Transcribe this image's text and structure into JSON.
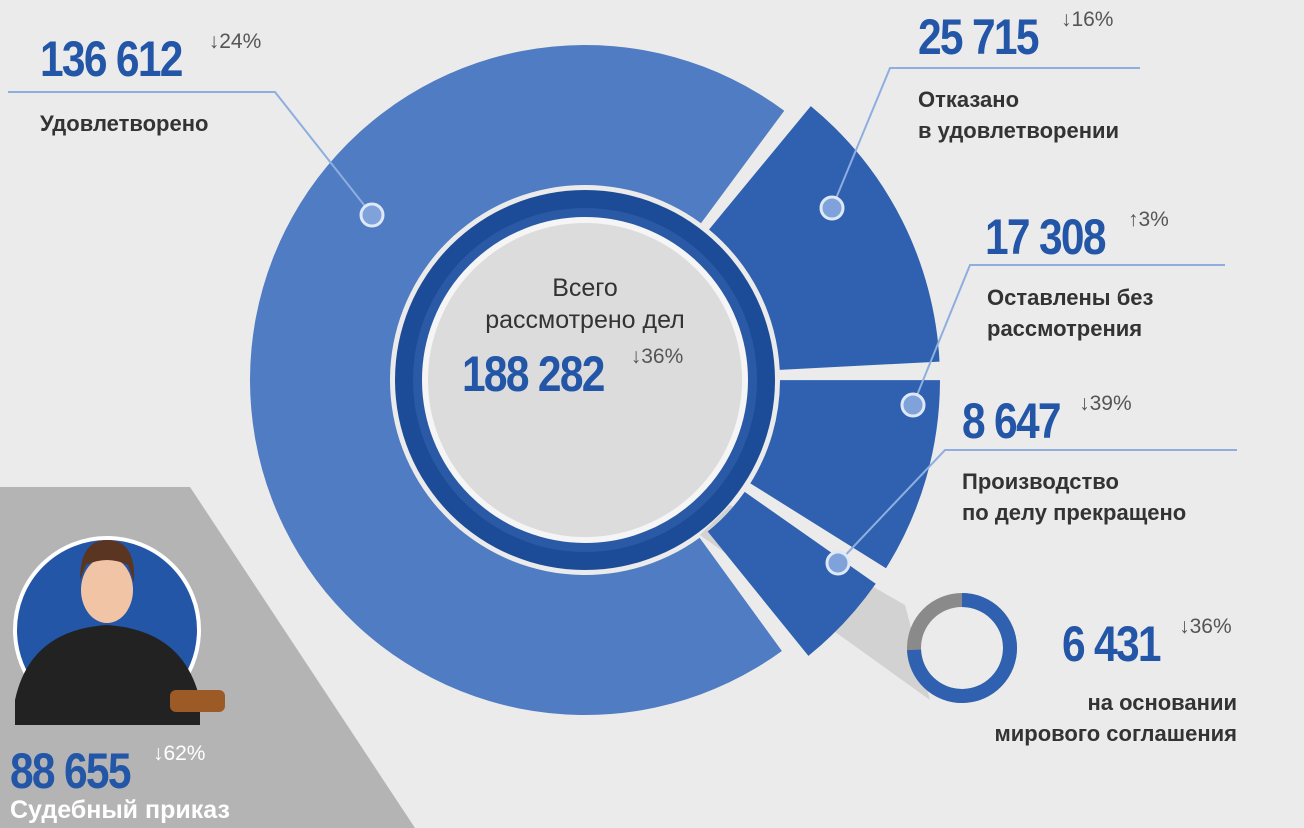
{
  "chart_data": {
    "type": "donut",
    "center_title": "Всего\nрассмотрено дел",
    "total": 188282,
    "total_label": "188 282",
    "total_change": "↓36%",
    "categories": [
      "Удовлетворено",
      "Отказано\nв удовлетворении",
      "Оставлены без\nрассмотрения",
      "Производство\nпо делу прекращено"
    ],
    "values": [
      136612,
      25715,
      17308,
      8647
    ],
    "value_labels": [
      "136 612",
      "25 715",
      "17 308",
      "8 647"
    ],
    "changes": [
      "↓24%",
      "↓16%",
      "↑3%",
      "↓39%"
    ],
    "colors": [
      "#4f7cc2",
      "#2f61b0",
      "#2f61b0",
      "#2f61b0"
    ]
  },
  "settlement": {
    "value": 6431,
    "value_label": "6 431",
    "change": "↓36%",
    "label": "на основании\nмирового соглашения",
    "color": "#2f61b0"
  },
  "court_order": {
    "value_label": "88 655",
    "change": "↓62%",
    "label": "Судебный приказ"
  }
}
